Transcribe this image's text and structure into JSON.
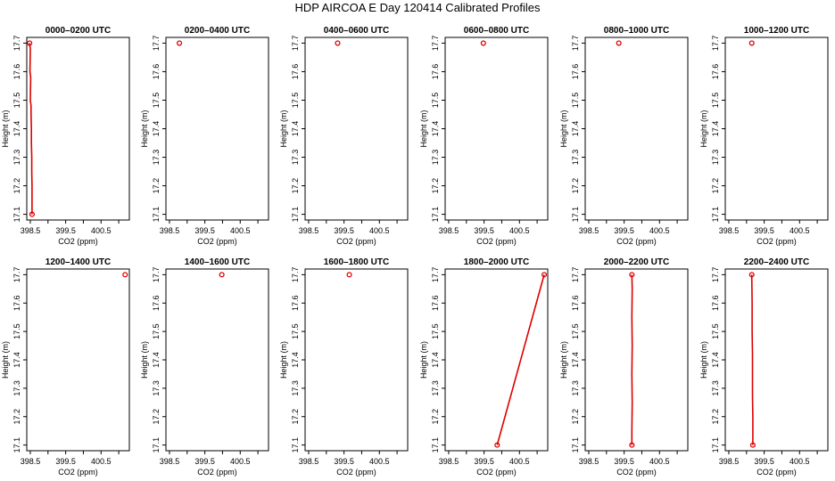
{
  "title": "HDP AIRCOA E  Day 120414  Calibrated Profiles",
  "colors": {
    "line": "#dd0000",
    "axis": "#000000"
  },
  "chart_data": [
    {
      "type": "line",
      "title": "0000–0200 UTC",
      "xlabel": "CO2 (ppm)",
      "ylabel": "Height (m)",
      "x_ticks": [
        "398.5",
        "399.5",
        "400.5"
      ],
      "y_ticks": [
        "17.1",
        "17.2",
        "17.3",
        "17.4",
        "17.5",
        "17.6",
        "17.7"
      ],
      "xlim": [
        398.4,
        401.3
      ],
      "ylim": [
        17.08,
        17.72
      ],
      "points": [
        [
          398.48,
          17.7
        ],
        [
          398.55,
          17.1
        ]
      ],
      "line": [
        [
          398.48,
          17.7
        ],
        [
          398.5,
          17.68
        ],
        [
          398.49,
          17.6
        ],
        [
          398.51,
          17.58
        ],
        [
          398.5,
          17.5
        ],
        [
          398.52,
          17.48
        ],
        [
          398.52,
          17.45
        ],
        [
          398.53,
          17.4
        ],
        [
          398.53,
          17.35
        ],
        [
          398.54,
          17.3
        ],
        [
          398.54,
          17.25
        ],
        [
          398.55,
          17.2
        ],
        [
          398.55,
          17.15
        ],
        [
          398.55,
          17.1
        ]
      ]
    },
    {
      "type": "line",
      "title": "0200–0400 UTC",
      "xlabel": "CO2 (ppm)",
      "ylabel": "Height (m)",
      "x_ticks": [
        "398.5",
        "399.5",
        "400.5"
      ],
      "y_ticks": [
        "17.1",
        "17.2",
        "17.3",
        "17.4",
        "17.5",
        "17.6",
        "17.7"
      ],
      "xlim": [
        398.4,
        401.3
      ],
      "ylim": [
        17.08,
        17.72
      ],
      "points": [
        [
          398.78,
          17.7
        ]
      ],
      "line": []
    },
    {
      "type": "line",
      "title": "0400–0600 UTC",
      "xlabel": "CO2 (ppm)",
      "ylabel": "Height (m)",
      "x_ticks": [
        "398.5",
        "399.5",
        "400.5"
      ],
      "y_ticks": [
        "17.1",
        "17.2",
        "17.3",
        "17.4",
        "17.5",
        "17.6",
        "17.7"
      ],
      "xlim": [
        398.4,
        401.3
      ],
      "ylim": [
        17.08,
        17.72
      ],
      "points": [
        [
          399.32,
          17.7
        ]
      ],
      "line": []
    },
    {
      "type": "line",
      "title": "0600–0800 UTC",
      "xlabel": "CO2 (ppm)",
      "ylabel": "Height (m)",
      "x_ticks": [
        "398.5",
        "399.5",
        "400.5"
      ],
      "y_ticks": [
        "17.1",
        "17.2",
        "17.3",
        "17.4",
        "17.5",
        "17.6",
        "17.7"
      ],
      "xlim": [
        398.4,
        401.3
      ],
      "ylim": [
        17.08,
        17.72
      ],
      "points": [
        [
          399.48,
          17.7
        ]
      ],
      "line": []
    },
    {
      "type": "line",
      "title": "0800–1000 UTC",
      "xlabel": "CO2 (ppm)",
      "ylabel": "Height (m)",
      "x_ticks": [
        "398.5",
        "399.5",
        "400.5"
      ],
      "y_ticks": [
        "17.1",
        "17.2",
        "17.3",
        "17.4",
        "17.5",
        "17.6",
        "17.7"
      ],
      "xlim": [
        398.4,
        401.3
      ],
      "ylim": [
        17.08,
        17.72
      ],
      "points": [
        [
          399.35,
          17.7
        ]
      ],
      "line": []
    },
    {
      "type": "line",
      "title": "1000–1200 UTC",
      "xlabel": "CO2 (ppm)",
      "ylabel": "Height (m)",
      "x_ticks": [
        "398.5",
        "399.5",
        "400.5"
      ],
      "y_ticks": [
        "17.1",
        "17.2",
        "17.3",
        "17.4",
        "17.5",
        "17.6",
        "17.7"
      ],
      "xlim": [
        398.4,
        401.3
      ],
      "ylim": [
        17.08,
        17.72
      ],
      "points": [
        [
          399.15,
          17.7
        ]
      ],
      "line": []
    },
    {
      "type": "line",
      "title": "1200–1400 UTC",
      "xlabel": "CO2 (ppm)",
      "ylabel": "Height (m)",
      "x_ticks": [
        "398.5",
        "399.5",
        "400.5"
      ],
      "y_ticks": [
        "17.1",
        "17.2",
        "17.3",
        "17.4",
        "17.5",
        "17.6",
        "17.7"
      ],
      "xlim": [
        398.4,
        401.3
      ],
      "ylim": [
        17.08,
        17.72
      ],
      "points": [
        [
          401.18,
          17.7
        ]
      ],
      "line": []
    },
    {
      "type": "line",
      "title": "1400–1600 UTC",
      "xlabel": "CO2 (ppm)",
      "ylabel": "Height (m)",
      "x_ticks": [
        "398.5",
        "399.5",
        "400.5"
      ],
      "y_ticks": [
        "17.1",
        "17.2",
        "17.3",
        "17.4",
        "17.5",
        "17.6",
        "17.7"
      ],
      "xlim": [
        398.4,
        401.3
      ],
      "ylim": [
        17.08,
        17.72
      ],
      "points": [
        [
          399.98,
          17.7
        ]
      ],
      "line": []
    },
    {
      "type": "line",
      "title": "1600–1800 UTC",
      "xlabel": "CO2 (ppm)",
      "ylabel": "Height (m)",
      "x_ticks": [
        "398.5",
        "399.5",
        "400.5"
      ],
      "y_ticks": [
        "17.1",
        "17.2",
        "17.3",
        "17.4",
        "17.5",
        "17.6",
        "17.7"
      ],
      "xlim": [
        398.4,
        401.3
      ],
      "ylim": [
        17.08,
        17.72
      ],
      "points": [
        [
          399.65,
          17.7
        ]
      ],
      "line": []
    },
    {
      "type": "line",
      "title": "1800–2000 UTC",
      "xlabel": "CO2 (ppm)",
      "ylabel": "Height (m)",
      "x_ticks": [
        "398.5",
        "399.5",
        "400.5"
      ],
      "y_ticks": [
        "17.1",
        "17.2",
        "17.3",
        "17.4",
        "17.5",
        "17.6",
        "17.7"
      ],
      "xlim": [
        398.4,
        401.3
      ],
      "ylim": [
        17.08,
        17.72
      ],
      "points": [
        [
          399.87,
          17.1
        ],
        [
          401.2,
          17.7
        ]
      ],
      "line": [
        [
          399.87,
          17.1
        ],
        [
          401.2,
          17.7
        ]
      ]
    },
    {
      "type": "line",
      "title": "2000–2200 UTC",
      "xlabel": "CO2 (ppm)",
      "ylabel": "Height (m)",
      "x_ticks": [
        "398.5",
        "399.5",
        "400.5"
      ],
      "y_ticks": [
        "17.1",
        "17.2",
        "17.3",
        "17.4",
        "17.5",
        "17.6",
        "17.7"
      ],
      "xlim": [
        398.4,
        401.3
      ],
      "ylim": [
        17.08,
        17.72
      ],
      "points": [
        [
          399.72,
          17.7
        ],
        [
          399.72,
          17.1
        ]
      ],
      "line": [
        [
          399.72,
          17.7
        ],
        [
          399.73,
          17.65
        ],
        [
          399.72,
          17.55
        ],
        [
          399.73,
          17.45
        ],
        [
          399.72,
          17.35
        ],
        [
          399.73,
          17.25
        ],
        [
          399.72,
          17.15
        ],
        [
          399.72,
          17.1
        ]
      ]
    },
    {
      "type": "line",
      "title": "2200–2400 UTC",
      "xlabel": "CO2 (ppm)",
      "ylabel": "Height (m)",
      "x_ticks": [
        "398.5",
        "399.5",
        "400.5"
      ],
      "y_ticks": [
        "17.1",
        "17.2",
        "17.3",
        "17.4",
        "17.5",
        "17.6",
        "17.7"
      ],
      "xlim": [
        398.4,
        401.3
      ],
      "ylim": [
        17.08,
        17.72
      ],
      "points": [
        [
          399.15,
          17.7
        ],
        [
          399.18,
          17.1
        ]
      ],
      "line": [
        [
          399.15,
          17.7
        ],
        [
          399.16,
          17.6
        ],
        [
          399.16,
          17.5
        ],
        [
          399.17,
          17.42
        ],
        [
          399.17,
          17.35
        ],
        [
          399.17,
          17.27
        ],
        [
          399.18,
          17.2
        ],
        [
          399.18,
          17.1
        ]
      ]
    }
  ]
}
